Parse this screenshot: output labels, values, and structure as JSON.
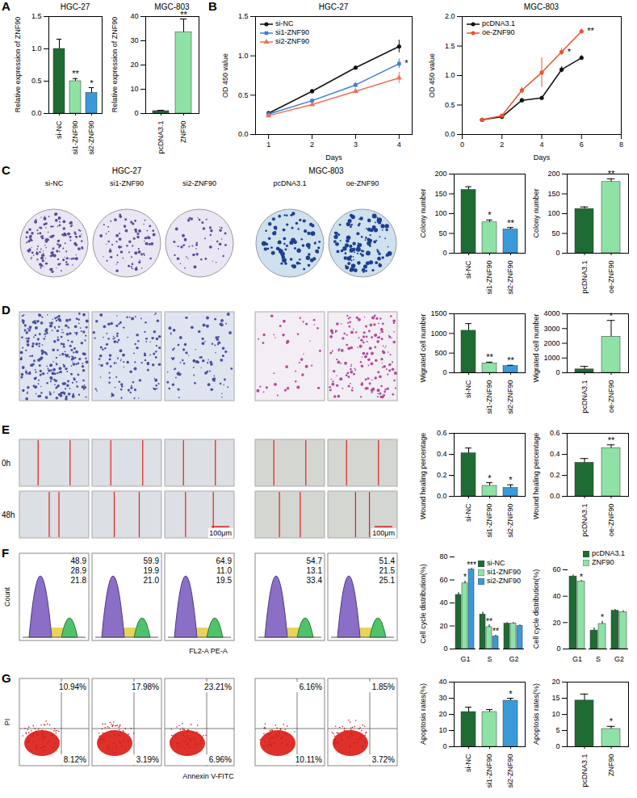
{
  "chart_data": [
    {
      "type": "bar",
      "title": "HGC-27",
      "categories": [
        "si-NC",
        "si1-ZNF90",
        "si2-ZNF90"
      ],
      "values": [
        1.0,
        0.5,
        0.32
      ],
      "errors": [
        0.15,
        0.04,
        0.08
      ],
      "significance": [
        null,
        "**",
        "*"
      ],
      "colors": [
        "#1f6b34",
        "#8fe2a6",
        "#3a9ad9"
      ],
      "y_label": "Relative expression of ZNF90",
      "ylim": [
        0,
        1.5
      ],
      "yticks": [
        {
          "value": 0,
          "label": "0.0"
        },
        0.5,
        {
          "value": 1,
          "label": "1.0"
        },
        1.5
      ]
    },
    {
      "type": "bar",
      "title": "MGC-803",
      "categories": [
        "pcDNA3.1",
        "ZNF90"
      ],
      "values": [
        1.0,
        33.5
      ],
      "errors": [
        0.3,
        5.5
      ],
      "significance": [
        null,
        "**"
      ],
      "colors": [
        "#1f6b34",
        "#8fe2a6"
      ],
      "y_label": "Relative expression of ZNF90",
      "ylim": [
        0,
        40
      ],
      "yticks": [
        0,
        10,
        20,
        30,
        40
      ]
    },
    {
      "type": "line",
      "title": "HGC-27",
      "x": [
        1,
        2,
        3,
        4
      ],
      "x_label": "Days",
      "y_label": "OD 450 value",
      "xlim": [
        0.7,
        4.3
      ],
      "xticks": [
        1,
        2,
        3,
        4
      ],
      "ylim": [
        0,
        1.5
      ],
      "yticks": [
        {
          "value": 0,
          "label": "0.0"
        },
        0.5,
        {
          "value": 1,
          "label": "1.0"
        },
        1.5
      ],
      "legend": "top-left",
      "series": [
        {
          "name": "si-NC",
          "color": "#111111",
          "marker": "circle",
          "values": [
            0.27,
            0.55,
            0.85,
            1.12
          ],
          "errors": [
            0.02,
            0.02,
            0.02,
            0.08
          ],
          "significance": [
            null,
            null,
            null,
            null
          ]
        },
        {
          "name": "si1-ZNF90",
          "color": "#3a7fd9",
          "marker": "square",
          "values": [
            0.26,
            0.43,
            0.63,
            0.9
          ],
          "errors": [
            0.02,
            0.02,
            0.03,
            0.06
          ],
          "significance": [
            null,
            null,
            null,
            "*"
          ]
        },
        {
          "name": "si2-ZNF90",
          "color": "#f0705a",
          "marker": "triangle",
          "values": [
            0.24,
            0.38,
            0.55,
            0.72
          ],
          "errors": [
            0.02,
            0.02,
            0.03,
            0.07
          ],
          "significance": [
            null,
            null,
            null,
            null
          ]
        }
      ]
    },
    {
      "type": "line",
      "title": "MGC-803",
      "x": [
        1,
        2,
        3,
        4,
        5,
        6
      ],
      "x_label": "Days",
      "y_label": "OD 450 value",
      "xlim": [
        0,
        8
      ],
      "xticks": [
        0,
        2,
        4,
        6,
        8
      ],
      "ylim": [
        0,
        2
      ],
      "yticks": [
        {
          "value": 0,
          "label": "0.0"
        },
        0.5,
        {
          "value": 1,
          "label": "1.0"
        },
        1.5,
        {
          "value": 2,
          "label": "2.0"
        }
      ],
      "legend": "top-left",
      "series": [
        {
          "name": "pcDNA3.1",
          "color": "#111111",
          "marker": "circle",
          "values": [
            0.25,
            0.3,
            0.58,
            0.62,
            1.1,
            1.3
          ],
          "errors": [
            0.01,
            0.01,
            0.03,
            0.03,
            0.05,
            0.04
          ],
          "significance": [
            null,
            null,
            null,
            null,
            null,
            null
          ]
        },
        {
          "name": "oe-ZNF90",
          "color": "#f0502a",
          "marker": "circle",
          "values": [
            0.25,
            0.32,
            0.75,
            1.05,
            1.4,
            1.75
          ],
          "errors": [
            0.01,
            0.01,
            0.05,
            0.25,
            0.06,
            0.04
          ],
          "significance": [
            null,
            null,
            null,
            null,
            "*",
            "**"
          ]
        }
      ]
    },
    {
      "type": "bar",
      "categories": [
        "si-NC",
        "si1-ZNF90",
        "si2-ZNF90"
      ],
      "values": [
        160,
        78,
        60
      ],
      "errors": [
        8,
        6,
        5
      ],
      "significance": [
        null,
        "*",
        "**"
      ],
      "colors": [
        "#1f6b34",
        "#8fe2a6",
        "#3a9ad9"
      ],
      "y_label": "Colony number",
      "ylim": [
        0,
        200
      ],
      "yticks": [
        0,
        50,
        100,
        150,
        200
      ]
    },
    {
      "type": "bar",
      "categories": [
        "pcDNA3.1",
        "oe-ZNF90"
      ],
      "values": [
        112,
        180
      ],
      "errors": [
        5,
        8
      ],
      "significance": [
        null,
        "**"
      ],
      "colors": [
        "#1f6b34",
        "#8fe2a6"
      ],
      "y_label": "Colony number",
      "ylim": [
        0,
        200
      ],
      "yticks": [
        0,
        50,
        100,
        150,
        200
      ]
    },
    {
      "type": "bar",
      "categories": [
        "si-NC",
        "si1-ZNF90",
        "si2-ZNF90"
      ],
      "values": [
        1070,
        240,
        170
      ],
      "errors": [
        180,
        30,
        20
      ],
      "significance": [
        null,
        "**",
        "**"
      ],
      "colors": [
        "#1f6b34",
        "#8fe2a6",
        "#3a9ad9"
      ],
      "y_label": "Wigrated cell number",
      "ylim": [
        0,
        1500
      ],
      "yticks": [
        0,
        500,
        1000,
        1500
      ]
    },
    {
      "type": "bar",
      "categories": [
        "pcDNA3.1",
        "oe-ZNF90"
      ],
      "values": [
        230,
        2450
      ],
      "errors": [
        200,
        1100
      ],
      "significance": [
        null,
        "*"
      ],
      "colors": [
        "#1f6b34",
        "#8fe2a6"
      ],
      "y_label": "Wigrated cell number",
      "ylim": [
        0,
        4000
      ],
      "yticks": [
        0,
        1000,
        2000,
        3000,
        4000
      ]
    },
    {
      "type": "bar",
      "categories": [
        "si-NC",
        "si1-ZNF90",
        "si2-ZNF90"
      ],
      "values": [
        0.41,
        0.1,
        0.08
      ],
      "errors": [
        0.05,
        0.03,
        0.03
      ],
      "significance": [
        null,
        "*",
        "*"
      ],
      "colors": [
        "#1f6b34",
        "#8fe2a6",
        "#3a9ad9"
      ],
      "y_label": "Wound healing percentage",
      "ylim": [
        0,
        0.6
      ],
      "yticks": [
        {
          "value": 0,
          "label": "0.0"
        },
        0.2,
        0.4,
        0.6
      ]
    },
    {
      "type": "bar",
      "categories": [
        "pcDNA3.1",
        "oe-ZNF90"
      ],
      "values": [
        0.32,
        0.46
      ],
      "errors": [
        0.04,
        0.03
      ],
      "significance": [
        null,
        "**"
      ],
      "colors": [
        "#1f6b34",
        "#8fe2a6"
      ],
      "y_label": "Wound healing percentage",
      "ylim": [
        0,
        0.6
      ],
      "yticks": [
        {
          "value": 0,
          "label": "0.0"
        },
        0.2,
        0.4,
        0.6
      ]
    },
    {
      "type": "bar",
      "categories": [
        "G1",
        "S",
        "G2"
      ],
      "y_label": "Cell cycle distribution(%)",
      "ylim": [
        0,
        80
      ],
      "yticks": [
        0,
        20,
        40,
        60,
        80
      ],
      "legend": "top-right",
      "series": [
        {
          "name": "si-NC",
          "color": "#1f6b34",
          "values": [
            47,
            30,
            22
          ],
          "errors": [
            2,
            2,
            1
          ],
          "significance": [
            null,
            null,
            null
          ]
        },
        {
          "name": "si1-ZNF90",
          "color": "#8fe2a6",
          "values": [
            57,
            19,
            22
          ],
          "errors": [
            2,
            2,
            1
          ],
          "significance": [
            "*",
            "**",
            null
          ]
        },
        {
          "name": "si2-ZNF90",
          "color": "#3a9ad9",
          "values": [
            69,
            11,
            20
          ],
          "errors": [
            1,
            1,
            1
          ],
          "significance": [
            "***",
            "**",
            null
          ]
        }
      ]
    },
    {
      "type": "bar",
      "categories": [
        "G1",
        "S",
        "G2"
      ],
      "y_label": "Cell cycle distribution(%)",
      "ylim": [
        0,
        60
      ],
      "yticks": [
        0,
        20,
        40,
        60
      ],
      "legend": "top",
      "series": [
        {
          "name": "pcDNA3.1",
          "color": "#1f6b34",
          "values": [
            55,
            14,
            29
          ],
          "errors": [
            1,
            2,
            1
          ],
          "significance": [
            null,
            null,
            null
          ]
        },
        {
          "name": "ZNF90",
          "color": "#8fe2a6",
          "values": [
            51,
            19,
            28
          ],
          "errors": [
            1,
            2,
            1
          ],
          "significance": [
            "*",
            "*",
            null
          ]
        }
      ]
    },
    {
      "type": "bar",
      "categories": [
        "si-NC",
        "si1-ZNF90",
        "si2-ZNF90"
      ],
      "values": [
        21.5,
        21.5,
        28.5
      ],
      "errors": [
        3,
        1.5,
        1.5
      ],
      "significance": [
        null,
        null,
        "*"
      ],
      "colors": [
        "#1f6b34",
        "#8fe2a6",
        "#3a9ad9"
      ],
      "y_label": "Apoptosis rates(%)",
      "ylim": [
        0,
        40
      ],
      "yticks": [
        0,
        10,
        20,
        30,
        40
      ]
    },
    {
      "type": "bar",
      "categories": [
        "pcDNA3.1",
        "ZNF90"
      ],
      "values": [
        14.3,
        5.5
      ],
      "errors": [
        2,
        0.8
      ],
      "significance": [
        null,
        "*"
      ],
      "colors": [
        "#1f6b34",
        "#8fe2a6"
      ],
      "y_label": "Apoptosis rates(%)",
      "ylim": [
        0,
        20
      ],
      "yticks": [
        0,
        5,
        10,
        15,
        20
      ]
    }
  ],
  "panel_letters": [
    "A",
    "B",
    "C",
    "D",
    "E",
    "F",
    "G"
  ],
  "colony_plates": {
    "groups": [
      {
        "title": "HGC-27",
        "labels": [
          "si-NC",
          "si1-ZNF90",
          "si2-ZNF90"
        ]
      },
      {
        "title": "MGC-803",
        "labels": [
          "pcDNA3.1",
          "oe-ZNF90"
        ]
      }
    ]
  },
  "wound_images": {
    "time_labels": [
      "0h",
      "48h"
    ],
    "scale_bar": "100μm"
  },
  "cell_cycle_histograms": {
    "y_label": "Count",
    "x_label": "FL2-A PE-A",
    "values": [
      [
        "48.9",
        "28.9",
        "21.8"
      ],
      [
        "59.9",
        "19.9",
        "21.0"
      ],
      [
        "64.9",
        "11.0",
        "19.5"
      ],
      [
        "54.7",
        "13.1",
        "33.4"
      ],
      [
        "51.4",
        "21.5",
        "25.1"
      ]
    ]
  },
  "apoptosis_plots": {
    "y_label": "PI",
    "x_label": "Annexin V-FITC",
    "values": [
      [
        "10.94%",
        "8.12%"
      ],
      [
        "17.98%",
        "3.19%"
      ],
      [
        "23.21%",
        "6.96%"
      ],
      [
        "6.16%",
        "10.11%"
      ],
      [
        "1.85%",
        "3.72%"
      ]
    ]
  }
}
